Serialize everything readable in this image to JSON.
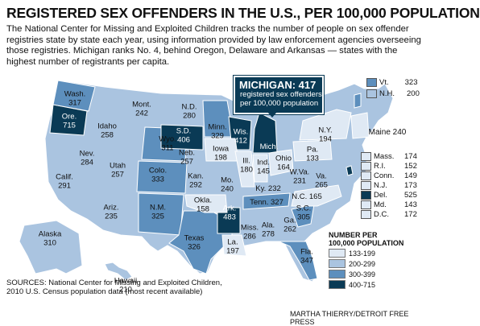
{
  "title": "REGISTERED SEX OFFENDERS IN THE U.S., PER 100,000 POPULATION",
  "description": "The National Center for Missing and Exploited Children tracks the number of people on sex offender registries state by state each year, using information provided by law enforcement agencies overseeing those registries. Michigan ranks No. 4, behind Oregon, Delaware and Arkansas — states with the highest number of registrants per capita.",
  "callout": {
    "heading": "MICHIGAN: 417",
    "line1": "registered sex offenders",
    "line2": "per 100,000 population"
  },
  "colors": {
    "c1": "#dfe9f4",
    "c2": "#aac4e0",
    "c3": "#5d8fbd",
    "c4": "#0a3a55",
    "land": "#aac4e0"
  },
  "states": [
    {
      "name": "Wash.",
      "value": "317"
    },
    {
      "name": "Ore.",
      "value": "715"
    },
    {
      "name": "Idaho",
      "value": "258"
    },
    {
      "name": "Mont.",
      "value": "242"
    },
    {
      "name": "Wyo.",
      "value": "311"
    },
    {
      "name": "Nev.",
      "value": "284"
    },
    {
      "name": "Utah",
      "value": "257"
    },
    {
      "name": "Calif.",
      "value": "291"
    },
    {
      "name": "Ariz.",
      "value": "235"
    },
    {
      "name": "Colo.",
      "value": "333"
    },
    {
      "name": "N.M.",
      "value": "325"
    },
    {
      "name": "N.D.",
      "value": "280"
    },
    {
      "name": "S.D.",
      "value": "406"
    },
    {
      "name": "Neb.",
      "value": "257"
    },
    {
      "name": "Kan.",
      "value": "292"
    },
    {
      "name": "Okla.",
      "value": "158"
    },
    {
      "name": "Texas",
      "value": "326"
    },
    {
      "name": "Minn.",
      "value": "329"
    },
    {
      "name": "Iowa",
      "value": "198"
    },
    {
      "name": "Mo.",
      "value": "240"
    },
    {
      "name": "Ark.",
      "value": "483"
    },
    {
      "name": "La.",
      "value": "197"
    },
    {
      "name": "Wis.",
      "value": "412"
    },
    {
      "name": "Ill.",
      "value": "180"
    },
    {
      "name": "Mich.",
      "value": ""
    },
    {
      "name": "Ind.",
      "value": "145"
    },
    {
      "name": "Ohio",
      "value": "164"
    },
    {
      "name": "Ky.",
      "value": "232"
    },
    {
      "name": "Tenn.",
      "value": "327"
    },
    {
      "name": "Miss.",
      "value": "286"
    },
    {
      "name": "Ala.",
      "value": "278"
    },
    {
      "name": "Ga.",
      "value": "262"
    },
    {
      "name": "Fla.",
      "value": "347"
    },
    {
      "name": "S.C.",
      "value": "305"
    },
    {
      "name": "N.C.",
      "value": "165"
    },
    {
      "name": "Va.",
      "value": "265"
    },
    {
      "name": "W.Va.",
      "value": "231"
    },
    {
      "name": "Pa.",
      "value": "133"
    },
    {
      "name": "N.Y.",
      "value": "194"
    },
    {
      "name": "Maine",
      "value": "240"
    },
    {
      "name": "Alaska",
      "value": "310"
    },
    {
      "name": "Hawaii",
      "value": "210"
    }
  ],
  "side_states": [
    {
      "name": "Vt.",
      "value": "323",
      "cls": "c3"
    },
    {
      "name": "N.H.",
      "value": "200",
      "cls": "c2"
    },
    {
      "name": "Mass.",
      "value": "174",
      "cls": "c1"
    },
    {
      "name": "R.I.",
      "value": "152",
      "cls": "c1"
    },
    {
      "name": "Conn.",
      "value": "149",
      "cls": "c1"
    },
    {
      "name": "N.J.",
      "value": "173",
      "cls": "c1"
    },
    {
      "name": "Del.",
      "value": "525",
      "cls": "c4"
    },
    {
      "name": "Md.",
      "value": "143",
      "cls": "c1"
    },
    {
      "name": "D.C.",
      "value": "172",
      "cls": "c1"
    }
  ],
  "legend": {
    "heading1": "NUMBER PER",
    "heading2": "100,000 POPULATION",
    "ranges": [
      {
        "label": "133-199",
        "cls": "c1"
      },
      {
        "label": "200-299",
        "cls": "c2"
      },
      {
        "label": "300-399",
        "cls": "c3"
      },
      {
        "label": "400-715",
        "cls": "c4"
      }
    ]
  },
  "sources": {
    "line1": "SOURCES: National Center for Missing and Exploited Children,",
    "line2": "2010 U.S. Census population data (most recent available)"
  },
  "credit": "MARTHA THIERRY/DETROIT FREE PRESS"
}
